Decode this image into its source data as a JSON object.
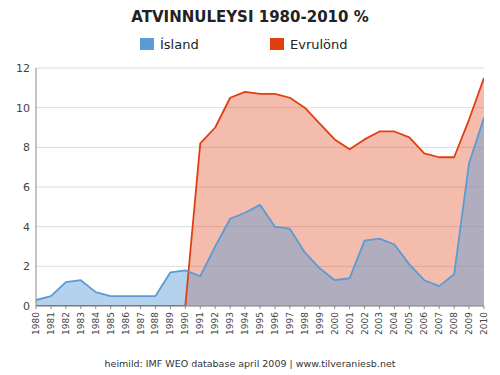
{
  "chart_data": {
    "type": "area",
    "title": "ATVINNULEYSI 1980-2010  %",
    "x": [
      1980,
      1981,
      1982,
      1983,
      1984,
      1985,
      1986,
      1987,
      1988,
      1989,
      1990,
      1991,
      1992,
      1993,
      1994,
      1995,
      1996,
      1997,
      1998,
      1999,
      2000,
      2001,
      2002,
      2003,
      2004,
      2005,
      2006,
      2007,
      2008,
      2009,
      2010
    ],
    "series": [
      {
        "name": "Ísland",
        "color": "#5b9bd5",
        "values": [
          0.3,
          0.5,
          1.2,
          1.3,
          0.7,
          0.5,
          0.5,
          0.5,
          0.5,
          1.7,
          1.8,
          1.5,
          3.0,
          4.4,
          4.7,
          5.1,
          4.0,
          3.9,
          2.7,
          1.9,
          1.3,
          1.4,
          3.3,
          3.4,
          3.1,
          2.1,
          1.3,
          1.0,
          1.6,
          7.2,
          9.5
        ]
      },
      {
        "name": "Evrulönd",
        "color": "#e04010",
        "values": [
          0.0,
          0.0,
          0.0,
          0.0,
          0.0,
          0.0,
          0.0,
          0.0,
          0.0,
          0.0,
          0.0,
          8.2,
          9.0,
          10.5,
          10.8,
          10.7,
          10.7,
          10.5,
          10.0,
          9.2,
          8.4,
          7.9,
          8.4,
          8.8,
          8.8,
          8.5,
          7.7,
          7.5,
          7.5,
          9.4,
          11.5
        ]
      }
    ],
    "xlim": [
      1980,
      2010
    ],
    "xticks": [
      1980,
      1981,
      1982,
      1983,
      1984,
      1985,
      1986,
      1987,
      1988,
      1989,
      1990,
      1991,
      1992,
      1993,
      1994,
      1995,
      1996,
      1997,
      1998,
      1999,
      2000,
      2001,
      2002,
      2003,
      2004,
      2005,
      2006,
      2007,
      2008,
      2009,
      2010
    ],
    "ylim": [
      0,
      12
    ],
    "yticks": [
      0,
      2,
      4,
      6,
      8,
      10,
      12
    ],
    "grid": true,
    "legend": "top",
    "annotations": [
      "heimild: IMF WEO database april 2009  |  www.tilveraniesb.net"
    ]
  }
}
